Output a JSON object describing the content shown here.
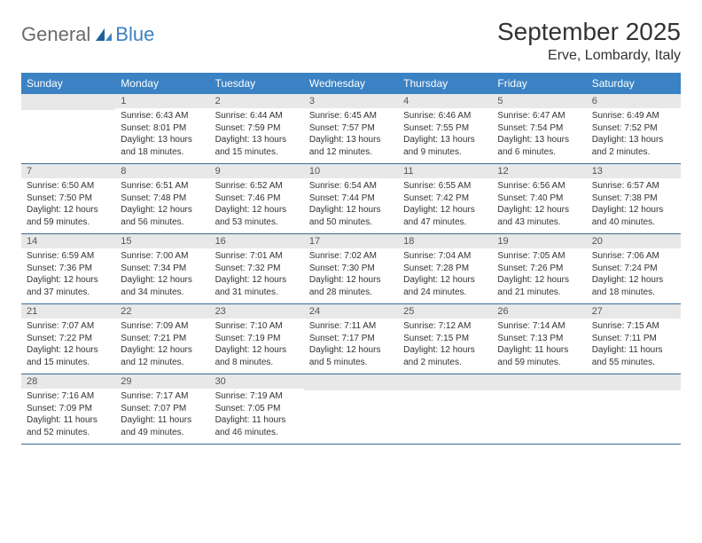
{
  "logo": {
    "general": "General",
    "blue": "Blue"
  },
  "title": "September 2025",
  "location": "Erve, Lombardy, Italy",
  "colors": {
    "header_bg": "#3b82c4",
    "header_text": "#ffffff",
    "daynum_bg": "#e8e8e8",
    "row_border": "#3b6a9a",
    "logo_gray": "#6b6b6b",
    "logo_blue": "#3b82c4"
  },
  "weekdays": [
    "Sunday",
    "Monday",
    "Tuesday",
    "Wednesday",
    "Thursday",
    "Friday",
    "Saturday"
  ],
  "weeks": [
    [
      {
        "n": "",
        "sr": "",
        "ss": "",
        "dl": ""
      },
      {
        "n": "1",
        "sr": "Sunrise: 6:43 AM",
        "ss": "Sunset: 8:01 PM",
        "dl": "Daylight: 13 hours and 18 minutes."
      },
      {
        "n": "2",
        "sr": "Sunrise: 6:44 AM",
        "ss": "Sunset: 7:59 PM",
        "dl": "Daylight: 13 hours and 15 minutes."
      },
      {
        "n": "3",
        "sr": "Sunrise: 6:45 AM",
        "ss": "Sunset: 7:57 PM",
        "dl": "Daylight: 13 hours and 12 minutes."
      },
      {
        "n": "4",
        "sr": "Sunrise: 6:46 AM",
        "ss": "Sunset: 7:55 PM",
        "dl": "Daylight: 13 hours and 9 minutes."
      },
      {
        "n": "5",
        "sr": "Sunrise: 6:47 AM",
        "ss": "Sunset: 7:54 PM",
        "dl": "Daylight: 13 hours and 6 minutes."
      },
      {
        "n": "6",
        "sr": "Sunrise: 6:49 AM",
        "ss": "Sunset: 7:52 PM",
        "dl": "Daylight: 13 hours and 2 minutes."
      }
    ],
    [
      {
        "n": "7",
        "sr": "Sunrise: 6:50 AM",
        "ss": "Sunset: 7:50 PM",
        "dl": "Daylight: 12 hours and 59 minutes."
      },
      {
        "n": "8",
        "sr": "Sunrise: 6:51 AM",
        "ss": "Sunset: 7:48 PM",
        "dl": "Daylight: 12 hours and 56 minutes."
      },
      {
        "n": "9",
        "sr": "Sunrise: 6:52 AM",
        "ss": "Sunset: 7:46 PM",
        "dl": "Daylight: 12 hours and 53 minutes."
      },
      {
        "n": "10",
        "sr": "Sunrise: 6:54 AM",
        "ss": "Sunset: 7:44 PM",
        "dl": "Daylight: 12 hours and 50 minutes."
      },
      {
        "n": "11",
        "sr": "Sunrise: 6:55 AM",
        "ss": "Sunset: 7:42 PM",
        "dl": "Daylight: 12 hours and 47 minutes."
      },
      {
        "n": "12",
        "sr": "Sunrise: 6:56 AM",
        "ss": "Sunset: 7:40 PM",
        "dl": "Daylight: 12 hours and 43 minutes."
      },
      {
        "n": "13",
        "sr": "Sunrise: 6:57 AM",
        "ss": "Sunset: 7:38 PM",
        "dl": "Daylight: 12 hours and 40 minutes."
      }
    ],
    [
      {
        "n": "14",
        "sr": "Sunrise: 6:59 AM",
        "ss": "Sunset: 7:36 PM",
        "dl": "Daylight: 12 hours and 37 minutes."
      },
      {
        "n": "15",
        "sr": "Sunrise: 7:00 AM",
        "ss": "Sunset: 7:34 PM",
        "dl": "Daylight: 12 hours and 34 minutes."
      },
      {
        "n": "16",
        "sr": "Sunrise: 7:01 AM",
        "ss": "Sunset: 7:32 PM",
        "dl": "Daylight: 12 hours and 31 minutes."
      },
      {
        "n": "17",
        "sr": "Sunrise: 7:02 AM",
        "ss": "Sunset: 7:30 PM",
        "dl": "Daylight: 12 hours and 28 minutes."
      },
      {
        "n": "18",
        "sr": "Sunrise: 7:04 AM",
        "ss": "Sunset: 7:28 PM",
        "dl": "Daylight: 12 hours and 24 minutes."
      },
      {
        "n": "19",
        "sr": "Sunrise: 7:05 AM",
        "ss": "Sunset: 7:26 PM",
        "dl": "Daylight: 12 hours and 21 minutes."
      },
      {
        "n": "20",
        "sr": "Sunrise: 7:06 AM",
        "ss": "Sunset: 7:24 PM",
        "dl": "Daylight: 12 hours and 18 minutes."
      }
    ],
    [
      {
        "n": "21",
        "sr": "Sunrise: 7:07 AM",
        "ss": "Sunset: 7:22 PM",
        "dl": "Daylight: 12 hours and 15 minutes."
      },
      {
        "n": "22",
        "sr": "Sunrise: 7:09 AM",
        "ss": "Sunset: 7:21 PM",
        "dl": "Daylight: 12 hours and 12 minutes."
      },
      {
        "n": "23",
        "sr": "Sunrise: 7:10 AM",
        "ss": "Sunset: 7:19 PM",
        "dl": "Daylight: 12 hours and 8 minutes."
      },
      {
        "n": "24",
        "sr": "Sunrise: 7:11 AM",
        "ss": "Sunset: 7:17 PM",
        "dl": "Daylight: 12 hours and 5 minutes."
      },
      {
        "n": "25",
        "sr": "Sunrise: 7:12 AM",
        "ss": "Sunset: 7:15 PM",
        "dl": "Daylight: 12 hours and 2 minutes."
      },
      {
        "n": "26",
        "sr": "Sunrise: 7:14 AM",
        "ss": "Sunset: 7:13 PM",
        "dl": "Daylight: 11 hours and 59 minutes."
      },
      {
        "n": "27",
        "sr": "Sunrise: 7:15 AM",
        "ss": "Sunset: 7:11 PM",
        "dl": "Daylight: 11 hours and 55 minutes."
      }
    ],
    [
      {
        "n": "28",
        "sr": "Sunrise: 7:16 AM",
        "ss": "Sunset: 7:09 PM",
        "dl": "Daylight: 11 hours and 52 minutes."
      },
      {
        "n": "29",
        "sr": "Sunrise: 7:17 AM",
        "ss": "Sunset: 7:07 PM",
        "dl": "Daylight: 11 hours and 49 minutes."
      },
      {
        "n": "30",
        "sr": "Sunrise: 7:19 AM",
        "ss": "Sunset: 7:05 PM",
        "dl": "Daylight: 11 hours and 46 minutes."
      },
      {
        "n": "",
        "sr": "",
        "ss": "",
        "dl": ""
      },
      {
        "n": "",
        "sr": "",
        "ss": "",
        "dl": ""
      },
      {
        "n": "",
        "sr": "",
        "ss": "",
        "dl": ""
      },
      {
        "n": "",
        "sr": "",
        "ss": "",
        "dl": ""
      }
    ]
  ]
}
